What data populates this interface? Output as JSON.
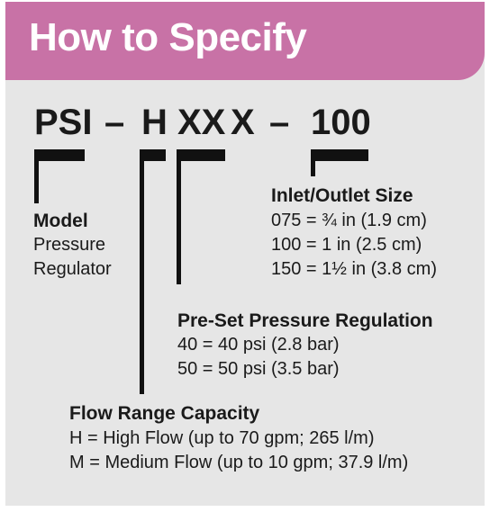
{
  "header": {
    "title": "How to Specify"
  },
  "code": {
    "prefix": "PSI",
    "dash1": "–",
    "flow": "H",
    "pressure": "XX",
    "size": "X",
    "dash2": "–",
    "default_size": "100"
  },
  "model": {
    "heading": "Model",
    "lines": [
      "Pressure",
      "Regulator"
    ]
  },
  "inlet": {
    "heading": "Inlet/Outlet Size",
    "lines": [
      "075 = ¾ in (1.9 cm)",
      "100 = 1 in (2.5 cm)",
      "150 = 1½ in (3.8 cm)"
    ]
  },
  "pressure": {
    "heading": "Pre-Set Pressure Regulation",
    "lines": [
      "40 = 40 psi (2.8 bar)",
      "50 = 50 psi (3.5 bar)"
    ]
  },
  "flow": {
    "heading": "Flow Range Capacity",
    "lines": [
      "H = High Flow (up to 70 gpm; 265 l/m)",
      "M = Medium Flow (up to 10 gpm; 37.9 l/m)"
    ]
  },
  "colors": {
    "header_bg": "#c872a6",
    "card_bg": "#e6e6e6",
    "text": "#1a1a1a",
    "bars": "#111111"
  }
}
